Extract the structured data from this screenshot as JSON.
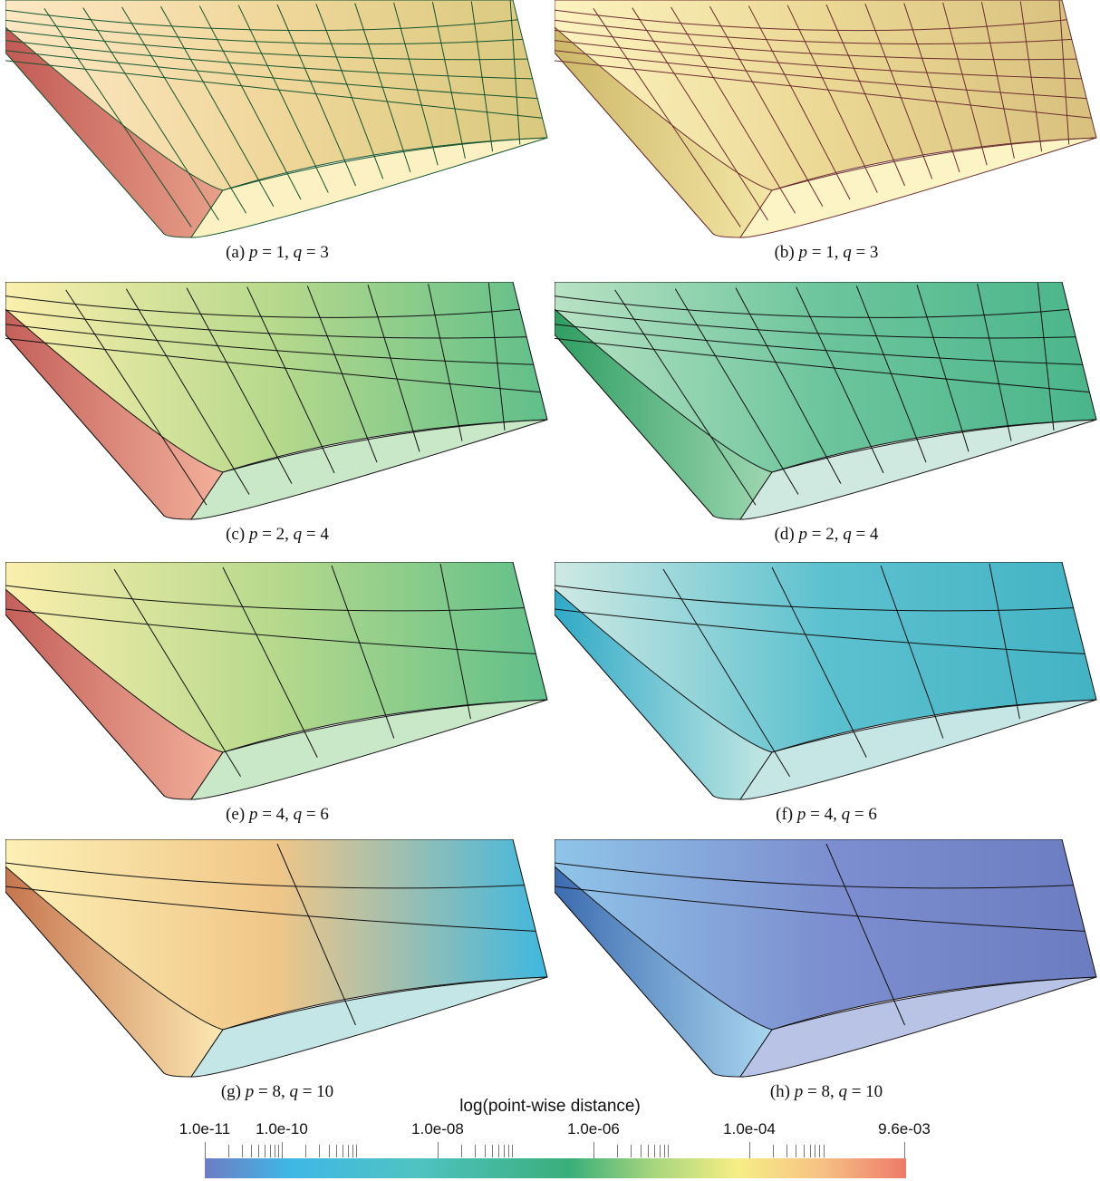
{
  "panels": [
    {
      "id": "a",
      "label": "(a)",
      "p": "1",
      "q": "3",
      "scheme": "warm-red",
      "mesh": 14
    },
    {
      "id": "b",
      "label": "(b)",
      "p": "1",
      "q": "3",
      "scheme": "yellow",
      "mesh": 14
    },
    {
      "id": "c",
      "label": "(c)",
      "p": "2",
      "q": "4",
      "scheme": "red-green",
      "mesh": 9
    },
    {
      "id": "d",
      "label": "(d)",
      "p": "2",
      "q": "4",
      "scheme": "green",
      "mesh": 9
    },
    {
      "id": "e",
      "label": "(e)",
      "p": "4",
      "q": "6",
      "scheme": "red-green",
      "mesh": 5
    },
    {
      "id": "f",
      "label": "(f)",
      "p": "4",
      "q": "6",
      "scheme": "teal",
      "mesh": 5
    },
    {
      "id": "g",
      "label": "(g)",
      "p": "8",
      "q": "10",
      "scheme": "orange-blue",
      "mesh": 2
    },
    {
      "id": "h",
      "label": "(h)",
      "p": "8",
      "q": "10",
      "scheme": "purple",
      "mesh": 2
    }
  ],
  "colorbar": {
    "title": "log(point-wise distance)",
    "ticks": [
      "1.0e-11",
      "1.0e-10",
      "1.0e-08",
      "1.0e-06",
      "1.0e-04",
      "9.6e-03"
    ],
    "colors": [
      "#6e7cc4",
      "#3fb7e6",
      "#4fc3c2",
      "#3aae7a",
      "#a7d67e",
      "#f6ee86",
      "#f6c184",
      "#ee7a6a"
    ]
  }
}
